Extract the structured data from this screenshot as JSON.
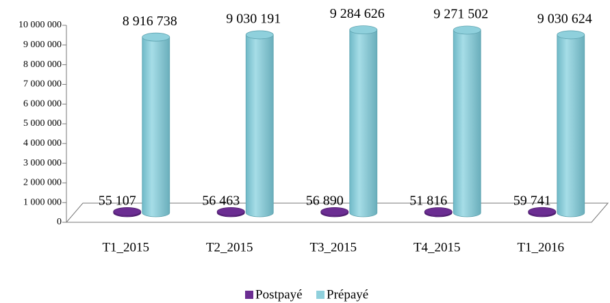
{
  "chart_data": {
    "type": "cylinder",
    "categories": [
      "T1_2015",
      "T2_2015",
      "T3_2015",
      "T4_2015",
      "T1_2016"
    ],
    "series": [
      {
        "name": "Postpayé",
        "color": "#6b2d92",
        "values": [
          55107,
          56463,
          56890,
          51816,
          59741
        ],
        "value_labels": [
          "55 107",
          "56 463",
          "56 890",
          "51 816",
          "59 741"
        ]
      },
      {
        "name": "Prépayé",
        "color": "#8fd0dc",
        "values": [
          8916738,
          9030191,
          9284626,
          9271502,
          9030624
        ],
        "value_labels": [
          "8 916 738",
          "9 030 191",
          "9 284 626",
          "9 271 502",
          "9 030 624"
        ]
      }
    ],
    "ylim": [
      0,
      10000000
    ],
    "yticks": [
      0,
      {
        "value": 1000000,
        "label": "1 000 000"
      },
      {
        "value": 2000000,
        "label": "2 000 000"
      },
      {
        "value": 3000000,
        "label": "3 000 000"
      },
      {
        "value": 4000000,
        "label": "4 000 000"
      },
      {
        "value": 5000000,
        "label": "5 000 000"
      },
      {
        "value": 6000000,
        "label": "6 000 000"
      },
      {
        "value": 7000000,
        "label": "7 000 000"
      },
      {
        "value": 8000000,
        "label": "8 000 000"
      },
      {
        "value": 9000000,
        "label": "9 000 000"
      },
      {
        "value": 10000000,
        "label": "10 000 000"
      }
    ],
    "grid": false,
    "legend": "bottom"
  }
}
